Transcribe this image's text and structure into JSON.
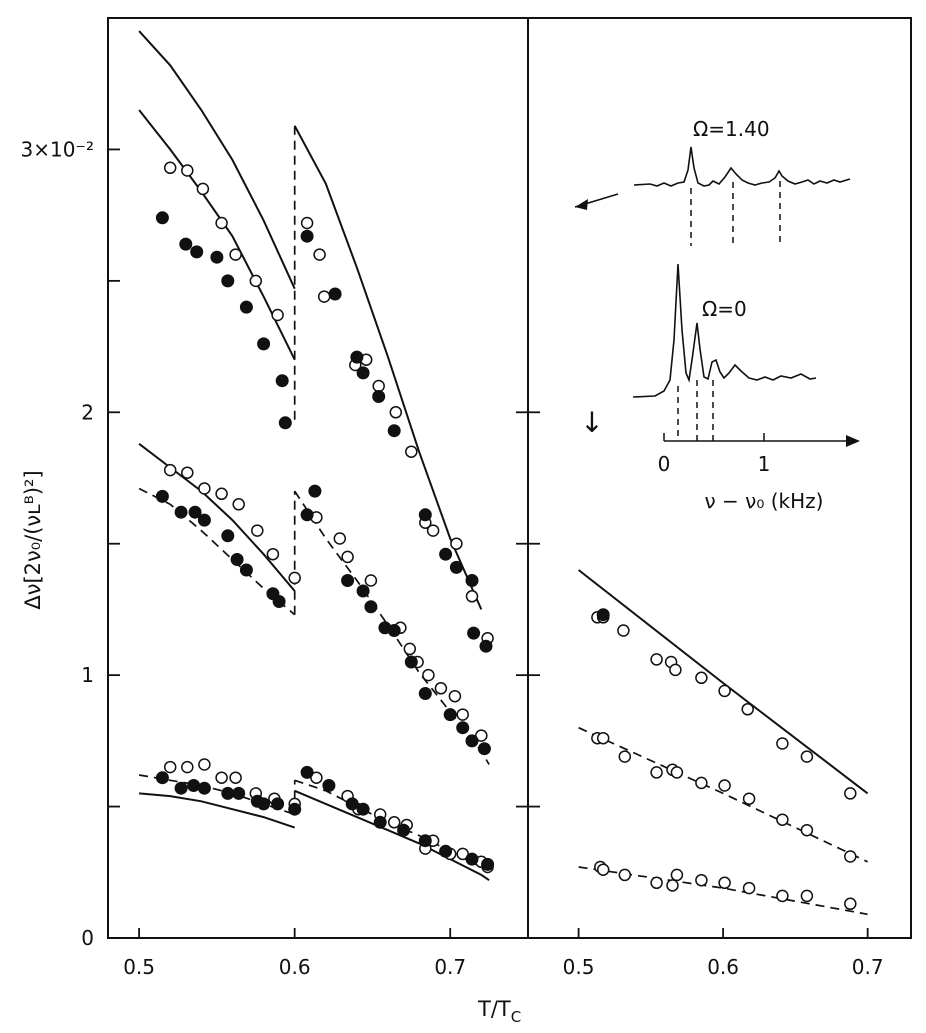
{
  "chart_data": [
    {
      "type": "scatter",
      "panel": "left",
      "xlabel": "T/T",
      "xlabel_sub": "C",
      "ylabel": "Δν[2ν₀/(νʟᴮ)²]",
      "xlim": [
        0.48,
        0.75
      ],
      "ylim": [
        0,
        0.035
      ],
      "x_ticks": [
        {
          "value": 0.5,
          "label": "0.5"
        },
        {
          "value": 0.6,
          "label": "0.6"
        },
        {
          "value": 0.7,
          "label": "0.7"
        }
      ],
      "y_ticks": [
        {
          "value": 0.0,
          "label": "0"
        },
        {
          "value": 0.005,
          "label": ""
        },
        {
          "value": 0.01,
          "label": "1"
        },
        {
          "value": 0.015,
          "label": ""
        },
        {
          "value": 0.02,
          "label": "2"
        },
        {
          "value": 0.025,
          "label": ""
        },
        {
          "value": 0.03,
          "label": "3×10⁻²"
        }
      ],
      "grid": false,
      "lines": [
        {
          "style": "solid",
          "segments": [
            [
              [
                0.5,
                0.0345
              ],
              [
                0.52,
                0.0332
              ],
              [
                0.54,
                0.0315
              ],
              [
                0.56,
                0.0296
              ],
              [
                0.58,
                0.0273
              ],
              [
                0.6,
                0.0247
              ]
            ],
            [
              [
                0.6,
                0.0309
              ],
              [
                0.62,
                0.0287
              ],
              [
                0.64,
                0.0255
              ],
              [
                0.66,
                0.0221
              ],
              [
                0.68,
                0.0185
              ],
              [
                0.7,
                0.0152
              ],
              [
                0.72,
                0.0125
              ]
            ]
          ]
        },
        {
          "style": "solid",
          "segments": [
            [
              [
                0.5,
                0.0315
              ],
              [
                0.52,
                0.03
              ],
              [
                0.54,
                0.0284
              ],
              [
                0.56,
                0.0267
              ],
              [
                0.58,
                0.0244
              ],
              [
                0.6,
                0.022
              ]
            ]
          ]
        },
        {
          "style": "dashed",
          "segments": [
            [
              [
                0.6,
                0.0309
              ],
              [
                0.6,
                0.0195
              ]
            ]
          ]
        },
        {
          "style": "solid",
          "segments": [
            [
              [
                0.5,
                0.0188
              ],
              [
                0.52,
                0.0179
              ],
              [
                0.54,
                0.017
              ],
              [
                0.56,
                0.0159
              ],
              [
                0.58,
                0.0146
              ],
              [
                0.6,
                0.0132
              ]
            ]
          ]
        },
        {
          "style": "dashed",
          "segments": [
            [
              [
                0.5,
                0.0171
              ],
              [
                0.52,
                0.0165
              ],
              [
                0.54,
                0.0155
              ],
              [
                0.56,
                0.0144
              ],
              [
                0.58,
                0.0133
              ],
              [
                0.6,
                0.0123
              ]
            ],
            [
              [
                0.6,
                0.0123
              ],
              [
                0.6,
                0.017
              ]
            ],
            [
              [
                0.6,
                0.017
              ],
              [
                0.62,
                0.0152
              ],
              [
                0.64,
                0.0136
              ],
              [
                0.66,
                0.0119
              ],
              [
                0.68,
                0.0101
              ],
              [
                0.7,
                0.0086
              ],
              [
                0.72,
                0.0071
              ],
              [
                0.725,
                0.0066
              ]
            ]
          ]
        },
        {
          "style": "solid",
          "segments": [
            [
              [
                0.5,
                0.0055
              ],
              [
                0.52,
                0.0054
              ],
              [
                0.54,
                0.0052
              ],
              [
                0.56,
                0.0049
              ],
              [
                0.58,
                0.0046
              ],
              [
                0.6,
                0.0042
              ]
            ],
            [
              [
                0.6,
                0.0056
              ],
              [
                0.62,
                0.0051
              ],
              [
                0.64,
                0.0046
              ],
              [
                0.66,
                0.0041
              ],
              [
                0.68,
                0.0036
              ],
              [
                0.7,
                0.003
              ],
              [
                0.72,
                0.0024
              ],
              [
                0.725,
                0.0022
              ]
            ]
          ]
        },
        {
          "style": "dashed",
          "segments": [
            [
              [
                0.5,
                0.0062
              ],
              [
                0.52,
                0.006
              ],
              [
                0.54,
                0.0058
              ],
              [
                0.56,
                0.0055
              ],
              [
                0.58,
                0.0051
              ],
              [
                0.6,
                0.0047
              ]
            ],
            [
              [
                0.6,
                0.0047
              ],
              [
                0.6,
                0.006
              ]
            ],
            [
              [
                0.6,
                0.006
              ],
              [
                0.62,
                0.0056
              ],
              [
                0.64,
                0.005
              ],
              [
                0.66,
                0.0044
              ],
              [
                0.68,
                0.0039
              ],
              [
                0.7,
                0.0033
              ],
              [
                0.72,
                0.0027
              ],
              [
                0.725,
                0.0025
              ]
            ]
          ]
        }
      ],
      "open_points": [
        [
          0.52,
          0.0293
        ],
        [
          0.531,
          0.0292
        ],
        [
          0.541,
          0.0285
        ],
        [
          0.553,
          0.0272
        ],
        [
          0.562,
          0.026
        ],
        [
          0.575,
          0.025
        ],
        [
          0.589,
          0.0237
        ],
        [
          0.608,
          0.0272
        ],
        [
          0.616,
          0.026
        ],
        [
          0.619,
          0.0244
        ],
        [
          0.639,
          0.0218
        ],
        [
          0.646,
          0.022
        ],
        [
          0.654,
          0.021
        ],
        [
          0.665,
          0.02
        ],
        [
          0.675,
          0.0185
        ],
        [
          0.684,
          0.0158
        ],
        [
          0.689,
          0.0155
        ],
        [
          0.704,
          0.015
        ],
        [
          0.714,
          0.013
        ],
        [
          0.724,
          0.0114
        ],
        [
          0.52,
          0.0178
        ],
        [
          0.531,
          0.0177
        ],
        [
          0.542,
          0.0171
        ],
        [
          0.553,
          0.0169
        ],
        [
          0.564,
          0.0165
        ],
        [
          0.576,
          0.0155
        ],
        [
          0.586,
          0.0146
        ],
        [
          0.6,
          0.0137
        ],
        [
          0.614,
          0.016
        ],
        [
          0.629,
          0.0152
        ],
        [
          0.634,
          0.0145
        ],
        [
          0.649,
          0.0136
        ],
        [
          0.668,
          0.0118
        ],
        [
          0.674,
          0.011
        ],
        [
          0.679,
          0.0105
        ],
        [
          0.686,
          0.01
        ],
        [
          0.694,
          0.0095
        ],
        [
          0.703,
          0.0092
        ],
        [
          0.708,
          0.0085
        ],
        [
          0.72,
          0.0077
        ],
        [
          0.52,
          0.0065
        ],
        [
          0.531,
          0.0065
        ],
        [
          0.542,
          0.0066
        ],
        [
          0.553,
          0.0061
        ],
        [
          0.562,
          0.0061
        ],
        [
          0.575,
          0.0055
        ],
        [
          0.587,
          0.0053
        ],
        [
          0.6,
          0.0051
        ],
        [
          0.614,
          0.0061
        ],
        [
          0.634,
          0.0054
        ],
        [
          0.641,
          0.0049
        ],
        [
          0.655,
          0.0047
        ],
        [
          0.664,
          0.0044
        ],
        [
          0.672,
          0.0043
        ],
        [
          0.684,
          0.0034
        ],
        [
          0.689,
          0.0037
        ],
        [
          0.7,
          0.0032
        ],
        [
          0.708,
          0.0032
        ],
        [
          0.72,
          0.0029
        ],
        [
          0.724,
          0.0027
        ]
      ],
      "filled_points": [
        [
          0.515,
          0.0274
        ],
        [
          0.53,
          0.0264
        ],
        [
          0.537,
          0.0261
        ],
        [
          0.55,
          0.0259
        ],
        [
          0.557,
          0.025
        ],
        [
          0.569,
          0.024
        ],
        [
          0.58,
          0.0226
        ],
        [
          0.592,
          0.0212
        ],
        [
          0.594,
          0.0196
        ],
        [
          0.608,
          0.0267
        ],
        [
          0.626,
          0.0245
        ],
        [
          0.64,
          0.0221
        ],
        [
          0.644,
          0.0215
        ],
        [
          0.654,
          0.0206
        ],
        [
          0.664,
          0.0193
        ],
        [
          0.684,
          0.0161
        ],
        [
          0.697,
          0.0146
        ],
        [
          0.704,
          0.0141
        ],
        [
          0.714,
          0.0136
        ],
        [
          0.715,
          0.0116
        ],
        [
          0.723,
          0.0111
        ],
        [
          0.515,
          0.0168
        ],
        [
          0.527,
          0.0162
        ],
        [
          0.536,
          0.0162
        ],
        [
          0.542,
          0.0159
        ],
        [
          0.557,
          0.0153
        ],
        [
          0.563,
          0.0144
        ],
        [
          0.569,
          0.014
        ],
        [
          0.586,
          0.0131
        ],
        [
          0.59,
          0.0128
        ],
        [
          0.608,
          0.0161
        ],
        [
          0.613,
          0.017
        ],
        [
          0.634,
          0.0136
        ],
        [
          0.644,
          0.0132
        ],
        [
          0.649,
          0.0126
        ],
        [
          0.658,
          0.0118
        ],
        [
          0.664,
          0.0117
        ],
        [
          0.675,
          0.0105
        ],
        [
          0.684,
          0.0093
        ],
        [
          0.7,
          0.0085
        ],
        [
          0.708,
          0.008
        ],
        [
          0.714,
          0.0075
        ],
        [
          0.722,
          0.0072
        ],
        [
          0.515,
          0.0061
        ],
        [
          0.527,
          0.0057
        ],
        [
          0.535,
          0.0058
        ],
        [
          0.542,
          0.0057
        ],
        [
          0.557,
          0.0055
        ],
        [
          0.564,
          0.0055
        ],
        [
          0.576,
          0.0052
        ],
        [
          0.58,
          0.0051
        ],
        [
          0.589,
          0.0051
        ],
        [
          0.6,
          0.0049
        ],
        [
          0.608,
          0.0063
        ],
        [
          0.622,
          0.0058
        ],
        [
          0.637,
          0.0051
        ],
        [
          0.644,
          0.0049
        ],
        [
          0.655,
          0.0044
        ],
        [
          0.67,
          0.0041
        ],
        [
          0.684,
          0.0037
        ],
        [
          0.697,
          0.0033
        ],
        [
          0.714,
          0.003
        ],
        [
          0.724,
          0.0028
        ]
      ]
    },
    {
      "type": "scatter",
      "panel": "right",
      "xlim": [
        0.465,
        0.73
      ],
      "ylim": [
        0,
        0.035
      ],
      "x_ticks": [
        {
          "value": 0.5,
          "label": "0.5"
        },
        {
          "value": 0.6,
          "label": "0.6"
        },
        {
          "value": 0.7,
          "label": "0.7"
        }
      ],
      "y_ticks": [
        0.005,
        0.01,
        0.015,
        0.02
      ],
      "annotation": "↓",
      "grid": false,
      "lines": [
        {
          "style": "solid",
          "segments": [
            [
              [
                0.5,
                0.014
              ],
              [
                0.6,
                0.0097
              ],
              [
                0.7,
                0.0055
              ]
            ]
          ]
        },
        {
          "style": "dashed",
          "segments": [
            [
              [
                0.5,
                0.008
              ],
              [
                0.6,
                0.0055
              ],
              [
                0.7,
                0.0029
              ]
            ]
          ]
        },
        {
          "style": "dashed",
          "segments": [
            [
              [
                0.5,
                0.0027
              ],
              [
                0.6,
                0.0019
              ],
              [
                0.7,
                0.0009
              ]
            ]
          ]
        }
      ],
      "open_points": [
        [
          0.513,
          0.0122
        ],
        [
          0.517,
          0.0122
        ],
        [
          0.531,
          0.0117
        ],
        [
          0.554,
          0.0106
        ],
        [
          0.564,
          0.0105
        ],
        [
          0.567,
          0.0102
        ],
        [
          0.585,
          0.0099
        ],
        [
          0.601,
          0.0094
        ],
        [
          0.617,
          0.0087
        ],
        [
          0.641,
          0.0074
        ],
        [
          0.658,
          0.0069
        ],
        [
          0.688,
          0.0055
        ],
        [
          0.513,
          0.0076
        ],
        [
          0.517,
          0.0076
        ],
        [
          0.532,
          0.0069
        ],
        [
          0.554,
          0.0063
        ],
        [
          0.565,
          0.0064
        ],
        [
          0.568,
          0.0063
        ],
        [
          0.585,
          0.0059
        ],
        [
          0.601,
          0.0058
        ],
        [
          0.618,
          0.0053
        ],
        [
          0.641,
          0.0045
        ],
        [
          0.658,
          0.0041
        ],
        [
          0.688,
          0.0031
        ],
        [
          0.515,
          0.0027
        ],
        [
          0.517,
          0.0026
        ],
        [
          0.532,
          0.0024
        ],
        [
          0.554,
          0.0021
        ],
        [
          0.565,
          0.002
        ],
        [
          0.568,
          0.0024
        ],
        [
          0.585,
          0.0022
        ],
        [
          0.601,
          0.0021
        ],
        [
          0.618,
          0.0019
        ],
        [
          0.641,
          0.0016
        ],
        [
          0.658,
          0.0016
        ],
        [
          0.688,
          0.0013
        ]
      ],
      "filled_points": [
        [
          0.517,
          0.0123
        ]
      ]
    },
    {
      "type": "line",
      "panel": "inset",
      "xlabel": "ν − ν₀ (kHz)",
      "x_ticks": [
        {
          "value": 0,
          "label": "0"
        },
        {
          "value": 1,
          "label": "1"
        }
      ],
      "series": [
        {
          "name": "Ω=1.40",
          "peaks_khz": [
            0.25,
            0.7,
            1.2
          ]
        },
        {
          "name": "Ω=0",
          "peaks_khz": [
            0.12,
            0.32,
            0.48,
            0.7
          ]
        }
      ]
    }
  ]
}
